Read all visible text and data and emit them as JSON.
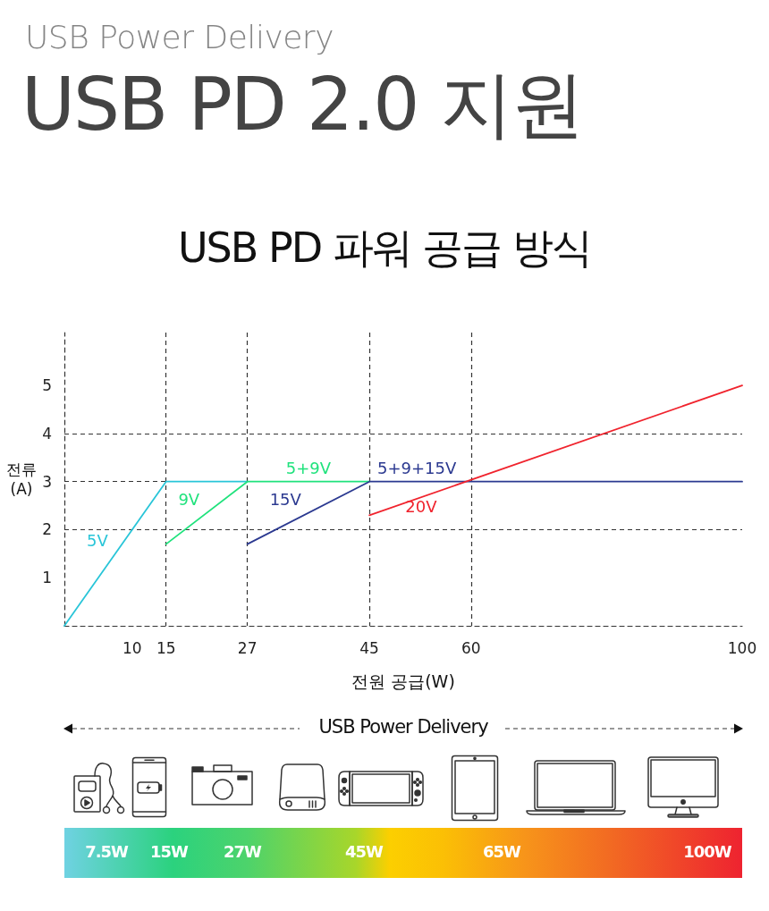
{
  "chart_data": {
    "type": "line",
    "title": "USB PD 2.0 지원",
    "subtitle": "USB PD 파워 공급 방식",
    "xlabel": "전원 공급(W)",
    "ylabel": "전류 (A)",
    "series": [
      {
        "name": "5V",
        "color": "#29c5d8",
        "x": [
          0,
          15,
          27
        ],
        "values": [
          0,
          3,
          3
        ]
      },
      {
        "name": "9V",
        "color": "#1fe27c",
        "x": [
          15,
          27,
          45
        ],
        "values": [
          1.7,
          3,
          3
        ]
      },
      {
        "name": "15V",
        "color": "#2b3990",
        "x": [
          27,
          45,
          100
        ],
        "values": [
          1.7,
          3,
          3
        ]
      },
      {
        "name": "20V",
        "color": "#f0232d",
        "x": [
          45,
          100
        ],
        "values": [
          2.3,
          5
        ]
      }
    ],
    "xlim": [
      0,
      100
    ],
    "xticks": [
      10,
      15,
      27,
      45,
      60,
      100
    ],
    "ylim": [
      0,
      6.1
    ],
    "yticks": [
      1,
      2,
      3,
      4,
      5
    ],
    "grid": true,
    "annotations": [
      "USB Power Delivery",
      {
        "text": "5+9V",
        "x": 36,
        "y": 3
      },
      {
        "text": "5+9+15V",
        "x": 52,
        "y": 3
      },
      "USB Power Delivery",
      "7.5W",
      "15W",
      "27W",
      "45W",
      "65W",
      "100W"
    ]
  }
}
